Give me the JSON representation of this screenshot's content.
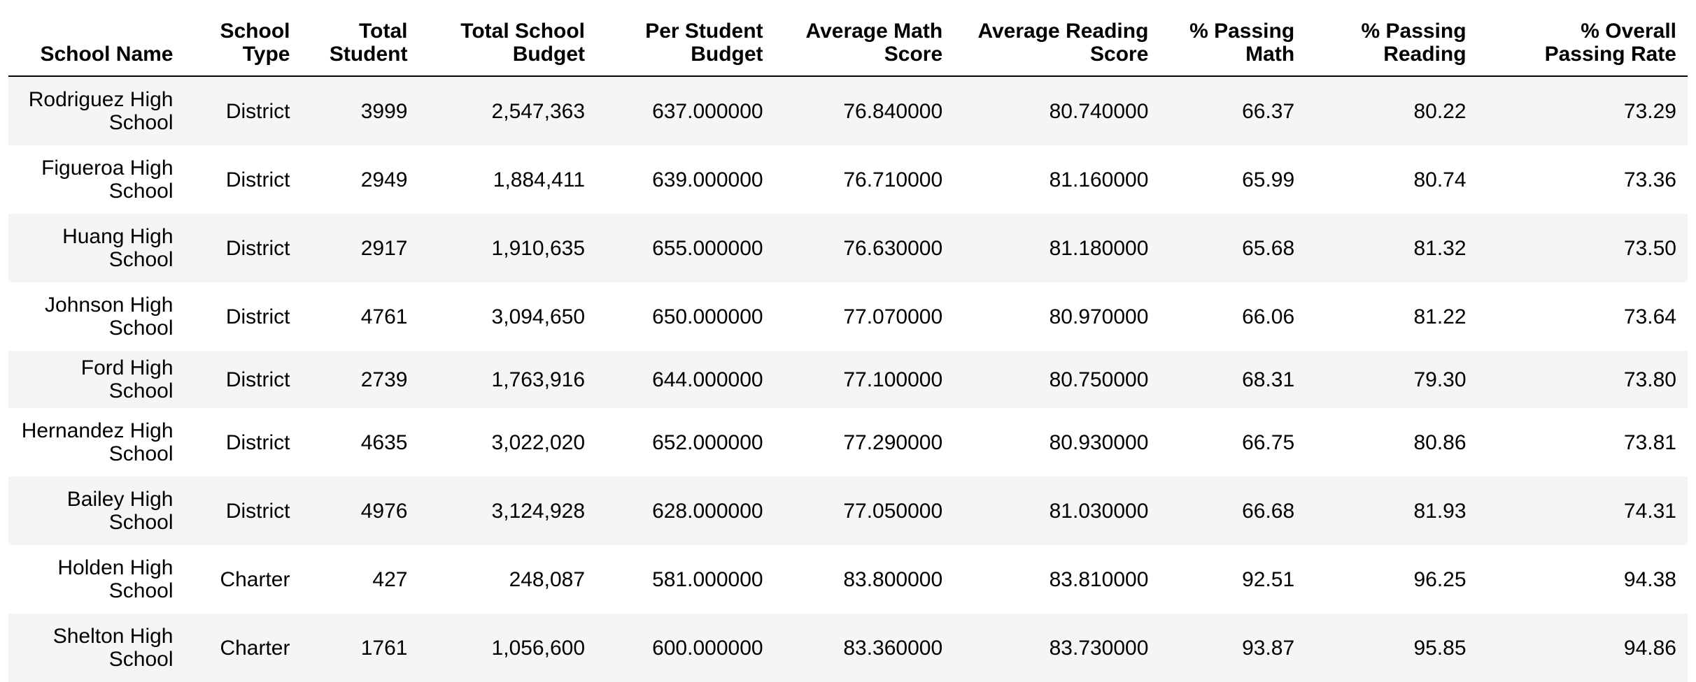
{
  "table": {
    "headers": [
      [
        "School Name"
      ],
      [
        "School",
        "Type"
      ],
      [
        "Total",
        "Student"
      ],
      [
        "Total School",
        "Budget"
      ],
      [
        "Per Student",
        "Budget"
      ],
      [
        "Average Math",
        "Score"
      ],
      [
        "Average Reading",
        "Score"
      ],
      [
        "% Passing",
        "Math"
      ],
      [
        "% Passing",
        "Reading"
      ],
      [
        "% Overall",
        "Passing Rate"
      ]
    ],
    "rows": [
      {
        "name": [
          "Rodriguez High",
          "School"
        ],
        "type": "District",
        "total_student": "3999",
        "total_budget": "2,547,363",
        "per_student_budget": "637.000000",
        "avg_math": "76.840000",
        "avg_reading": "80.740000",
        "pct_math": "66.37",
        "pct_reading": "80.22",
        "pct_overall": "73.29"
      },
      {
        "name": [
          "Figueroa High",
          "School"
        ],
        "type": "District",
        "total_student": "2949",
        "total_budget": "1,884,411",
        "per_student_budget": "639.000000",
        "avg_math": "76.710000",
        "avg_reading": "81.160000",
        "pct_math": "65.99",
        "pct_reading": "80.74",
        "pct_overall": "73.36"
      },
      {
        "name": [
          "Huang High",
          "School"
        ],
        "type": "District",
        "total_student": "2917",
        "total_budget": "1,910,635",
        "per_student_budget": "655.000000",
        "avg_math": "76.630000",
        "avg_reading": "81.180000",
        "pct_math": "65.68",
        "pct_reading": "81.32",
        "pct_overall": "73.50"
      },
      {
        "name": [
          "Johnson High",
          "School"
        ],
        "type": "District",
        "total_student": "4761",
        "total_budget": "3,094,650",
        "per_student_budget": "650.000000",
        "avg_math": "77.070000",
        "avg_reading": "80.970000",
        "pct_math": "66.06",
        "pct_reading": "81.22",
        "pct_overall": "73.64"
      },
      {
        "name": [
          "Ford High School"
        ],
        "type": "District",
        "total_student": "2739",
        "total_budget": "1,763,916",
        "per_student_budget": "644.000000",
        "avg_math": "77.100000",
        "avg_reading": "80.750000",
        "pct_math": "68.31",
        "pct_reading": "79.30",
        "pct_overall": "73.80"
      },
      {
        "name": [
          "Hernandez High",
          "School"
        ],
        "type": "District",
        "total_student": "4635",
        "total_budget": "3,022,020",
        "per_student_budget": "652.000000",
        "avg_math": "77.290000",
        "avg_reading": "80.930000",
        "pct_math": "66.75",
        "pct_reading": "80.86",
        "pct_overall": "73.81"
      },
      {
        "name": [
          "Bailey High",
          "School"
        ],
        "type": "District",
        "total_student": "4976",
        "total_budget": "3,124,928",
        "per_student_budget": "628.000000",
        "avg_math": "77.050000",
        "avg_reading": "81.030000",
        "pct_math": "66.68",
        "pct_reading": "81.93",
        "pct_overall": "74.31"
      },
      {
        "name": [
          "Holden High",
          "School"
        ],
        "type": "Charter",
        "total_student": "427",
        "total_budget": "248,087",
        "per_student_budget": "581.000000",
        "avg_math": "83.800000",
        "avg_reading": "83.810000",
        "pct_math": "92.51",
        "pct_reading": "96.25",
        "pct_overall": "94.38"
      },
      {
        "name": [
          "Shelton High",
          "School"
        ],
        "type": "Charter",
        "total_student": "1761",
        "total_budget": "1,056,600",
        "per_student_budget": "600.000000",
        "avg_math": "83.360000",
        "avg_reading": "83.730000",
        "pct_math": "93.87",
        "pct_reading": "95.85",
        "pct_overall": "94.86"
      }
    ]
  }
}
